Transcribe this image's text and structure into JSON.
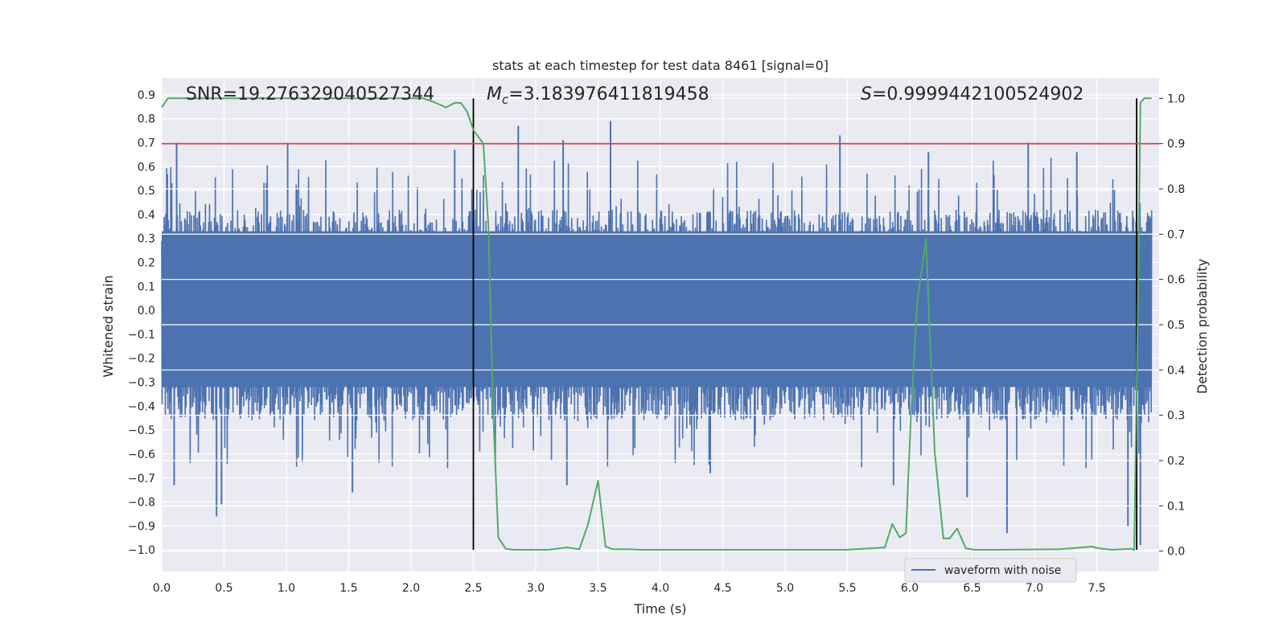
{
  "chart_data": {
    "type": "line",
    "title": "stats at each timestep for test data 8461 [signal=0]",
    "xlabel": "Time (s)",
    "ylabel": "Whitened strain",
    "y2label": "Detection probability",
    "xlim": [
      0,
      8.0
    ],
    "ylim": [
      -1.09,
      0.97
    ],
    "y2lim": [
      -0.045,
      1.045
    ],
    "xticks": [
      0.0,
      0.5,
      1.0,
      1.5,
      2.0,
      2.5,
      3.0,
      3.5,
      4.0,
      4.5,
      5.0,
      5.5,
      6.0,
      6.5,
      7.0,
      7.5
    ],
    "xtick_labels": [
      "0.0",
      "0.5",
      "1.0",
      "1.5",
      "2.0",
      "2.5",
      "3.0",
      "3.5",
      "4.0",
      "4.5",
      "5.0",
      "5.5",
      "6.0",
      "6.5",
      "7.0",
      "7.5"
    ],
    "yticks": [
      0.9,
      0.8,
      0.7,
      0.6,
      0.5,
      0.4,
      0.3,
      0.2,
      0.1,
      0.0,
      -0.1,
      -0.2,
      -0.3,
      -0.4,
      -0.5,
      -0.6,
      -0.7,
      -0.8,
      -0.9,
      -1.0
    ],
    "ytick_labels": [
      "0.9",
      "0.8",
      "0.7",
      "0.6",
      "0.5",
      "0.4",
      "0.3",
      "0.2",
      "0.1",
      "0.0",
      "−0.1",
      "−0.2",
      "−0.3",
      "−0.4",
      "−0.5",
      "−0.6",
      "−0.7",
      "−0.8",
      "−0.9",
      "−1.0"
    ],
    "y2ticks": [
      1.0,
      0.9,
      0.8,
      0.7,
      0.6,
      0.5,
      0.4,
      0.3,
      0.2,
      0.1,
      0.0
    ],
    "y2tick_labels": [
      "1.0",
      "0.9",
      "0.8",
      "0.7",
      "0.6",
      "0.5",
      "0.4",
      "0.3",
      "0.2",
      "0.1",
      "0.0"
    ],
    "grid": true,
    "legend": {
      "position": "bottom-right",
      "entries": [
        "waveform with noise"
      ]
    },
    "annotations": {
      "snr": "SNR=19.276329040527344",
      "mc_symbol": "M",
      "mc_sub": "c",
      "mc_value": "=3.183976411819458",
      "s_symbol": "S",
      "s_value": "=0.9999442100524902"
    },
    "threshold_line": {
      "y2": 0.9,
      "color": "#c44e52"
    },
    "vertical_lines": [
      2.5,
      7.82
    ],
    "waveform": {
      "name": "waveform with noise",
      "color": "#4c72b0",
      "x_range": [
        0,
        7.94
      ],
      "core_range": [
        -0.32,
        0.33
      ],
      "spikes": [
        {
          "x": 0.08,
          "y": 0.53
        },
        {
          "x": 0.1,
          "y": -0.73
        },
        {
          "x": 0.12,
          "y": 0.7
        },
        {
          "x": 0.44,
          "y": -0.86
        },
        {
          "x": 0.48,
          "y": -0.81
        },
        {
          "x": 1.01,
          "y": 0.7
        },
        {
          "x": 1.53,
          "y": -0.76
        },
        {
          "x": 2.35,
          "y": 0.67
        },
        {
          "x": 2.86,
          "y": 0.77
        },
        {
          "x": 3.22,
          "y": 0.71
        },
        {
          "x": 3.25,
          "y": -0.73
        },
        {
          "x": 3.6,
          "y": 0.79
        },
        {
          "x": 4.4,
          "y": -0.68
        },
        {
          "x": 5.44,
          "y": 0.73
        },
        {
          "x": 5.87,
          "y": -0.73
        },
        {
          "x": 6.15,
          "y": 0.66
        },
        {
          "x": 6.46,
          "y": -0.78
        },
        {
          "x": 6.78,
          "y": -0.93
        },
        {
          "x": 6.95,
          "y": 0.7
        },
        {
          "x": 7.34,
          "y": 0.66
        },
        {
          "x": 7.75,
          "y": -0.9
        },
        {
          "x": 7.85,
          "y": -0.98
        }
      ]
    },
    "series": [
      {
        "name": "detection probability",
        "axis": "right",
        "color": "#55a868",
        "x": [
          0.0,
          0.05,
          0.1,
          2.1,
          2.2,
          2.28,
          2.35,
          2.4,
          2.45,
          2.5,
          2.58,
          2.62,
          2.66,
          2.7,
          2.76,
          2.82,
          3.0,
          3.1,
          3.25,
          3.35,
          3.42,
          3.5,
          3.56,
          3.62,
          3.75,
          3.85,
          4.0,
          4.5,
          5.0,
          5.5,
          5.8,
          5.86,
          5.92,
          5.97,
          6.01,
          6.06,
          6.13,
          6.2,
          6.27,
          6.32,
          6.38,
          6.45,
          6.52,
          6.7,
          7.2,
          7.38,
          7.46,
          7.52,
          7.62,
          7.78,
          7.8,
          7.83,
          7.85,
          7.88,
          7.94
        ],
        "y": [
          0.98,
          1.0,
          1.0,
          1.0,
          0.99,
          0.98,
          0.99,
          0.99,
          0.97,
          0.93,
          0.9,
          0.72,
          0.3,
          0.03,
          0.005,
          0.003,
          0.003,
          0.003,
          0.008,
          0.004,
          0.06,
          0.155,
          0.01,
          0.004,
          0.004,
          0.003,
          0.003,
          0.003,
          0.003,
          0.003,
          0.008,
          0.06,
          0.03,
          0.04,
          0.3,
          0.55,
          0.69,
          0.22,
          0.028,
          0.028,
          0.05,
          0.006,
          0.003,
          0.003,
          0.004,
          0.008,
          0.01,
          0.006,
          0.003,
          0.005,
          0.002,
          0.55,
          0.99,
          1.0,
          1.0
        ]
      }
    ]
  }
}
